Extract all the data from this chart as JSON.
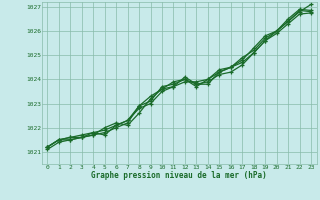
{
  "xlabel": "Graphe pression niveau de la mer (hPa)",
  "background_color": "#c8eaea",
  "plot_bg_color": "#c8eaea",
  "grid_color": "#88bbaa",
  "line_color": "#1a6b2a",
  "text_color": "#1a6b2a",
  "xlim": [
    -0.5,
    23.5
  ],
  "ylim": [
    1020.5,
    1027.2
  ],
  "yticks": [
    1021,
    1022,
    1023,
    1024,
    1025,
    1026,
    1027
  ],
  "xticks": [
    0,
    1,
    2,
    3,
    4,
    5,
    6,
    7,
    8,
    9,
    10,
    11,
    12,
    13,
    14,
    15,
    16,
    17,
    18,
    19,
    20,
    21,
    22,
    23
  ],
  "series": [
    [
      1021.2,
      1021.5,
      1021.6,
      1021.6,
      1021.7,
      1021.8,
      1022.0,
      1022.2,
      1022.9,
      1023.1,
      1023.7,
      1023.8,
      1024.0,
      1023.8,
      1023.8,
      1024.3,
      1024.5,
      1024.8,
      1025.3,
      1025.8,
      1026.0,
      1026.4,
      1026.8,
      1027.1
    ],
    [
      1021.2,
      1021.5,
      1021.6,
      1021.7,
      1021.8,
      1021.9,
      1022.1,
      1022.3,
      1022.8,
      1023.0,
      1023.5,
      1023.7,
      1023.9,
      1023.9,
      1024.0,
      1024.3,
      1024.5,
      1024.9,
      1025.2,
      1025.7,
      1026.0,
      1026.5,
      1026.9,
      1026.85
    ],
    [
      1021.1,
      1021.4,
      1021.5,
      1021.6,
      1021.7,
      1022.0,
      1022.2,
      1022.1,
      1022.6,
      1023.2,
      1023.6,
      1023.7,
      1024.1,
      1023.8,
      1023.9,
      1024.2,
      1024.3,
      1024.6,
      1025.1,
      1025.6,
      1025.9,
      1026.3,
      1026.7,
      1026.75
    ],
    [
      1021.2,
      1021.5,
      1021.5,
      1021.6,
      1021.8,
      1021.7,
      1022.1,
      1022.3,
      1022.9,
      1023.3,
      1023.6,
      1023.9,
      1024.0,
      1023.7,
      1024.0,
      1024.4,
      1024.5,
      1024.7,
      1025.1,
      1025.6,
      1026.0,
      1026.4,
      1026.85,
      1026.8
    ]
  ]
}
